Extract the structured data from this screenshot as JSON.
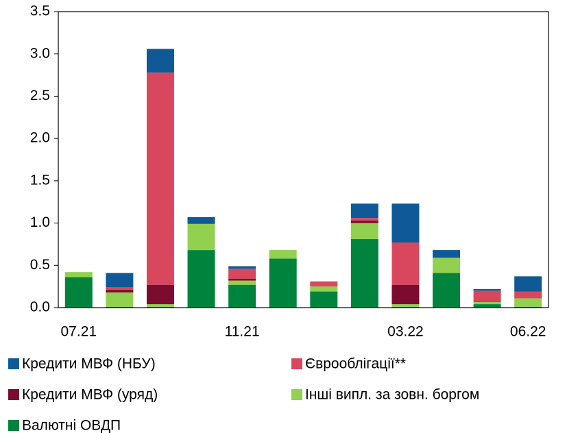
{
  "chart_data": {
    "type": "stacked_bar",
    "categories": [
      "07.21",
      null,
      null,
      null,
      "11.21",
      null,
      null,
      null,
      "03.22",
      null,
      null,
      "06.22"
    ],
    "series": [
      {
        "name": "Валютні ОВДП",
        "color": "#00843d",
        "values": [
          0.36,
          0.01,
          0.01,
          0.68,
          0.27,
          0.58,
          0.19,
          0.81,
          0.01,
          0.41,
          0.04,
          0.01
        ]
      },
      {
        "name": "Інші випл. за зовн. боргом",
        "color": "#92d050",
        "values": [
          0.06,
          0.17,
          0.03,
          0.31,
          0.05,
          0.1,
          0.06,
          0.19,
          0.03,
          0.18,
          0.03,
          0.1
        ]
      },
      {
        "name": "Кредити МВФ (уряд)",
        "color": "#7b0c2f",
        "values": [
          0,
          0.03,
          0.23,
          0,
          0.02,
          0,
          0,
          0.03,
          0.23,
          0,
          0.01,
          0
        ]
      },
      {
        "name": "Єврооблігації**",
        "color": "#d9475f",
        "values": [
          0,
          0.03,
          2.51,
          0,
          0.12,
          0,
          0.06,
          0.03,
          0.5,
          0,
          0.12,
          0.08
        ]
      },
      {
        "name": "Кредити МВФ (НБУ)",
        "color": "#0f5a96",
        "values": [
          0,
          0.17,
          0.28,
          0.08,
          0.03,
          0,
          0,
          0.17,
          0.46,
          0.09,
          0.02,
          0.18
        ]
      }
    ],
    "ylim": [
      0,
      3.5
    ],
    "yticks": [
      {
        "value": 0,
        "label": "0.0"
      },
      {
        "value": 0.5,
        "label": "0.5"
      },
      {
        "value": 1,
        "label": "1.0"
      },
      {
        "value": 1.5,
        "label": "1.5"
      },
      {
        "value": 2,
        "label": "2.0"
      },
      {
        "value": 2.5,
        "label": "2.5"
      },
      {
        "value": 3,
        "label": "3.0"
      },
      {
        "value": 3.5,
        "label": "3.5"
      }
    ]
  }
}
